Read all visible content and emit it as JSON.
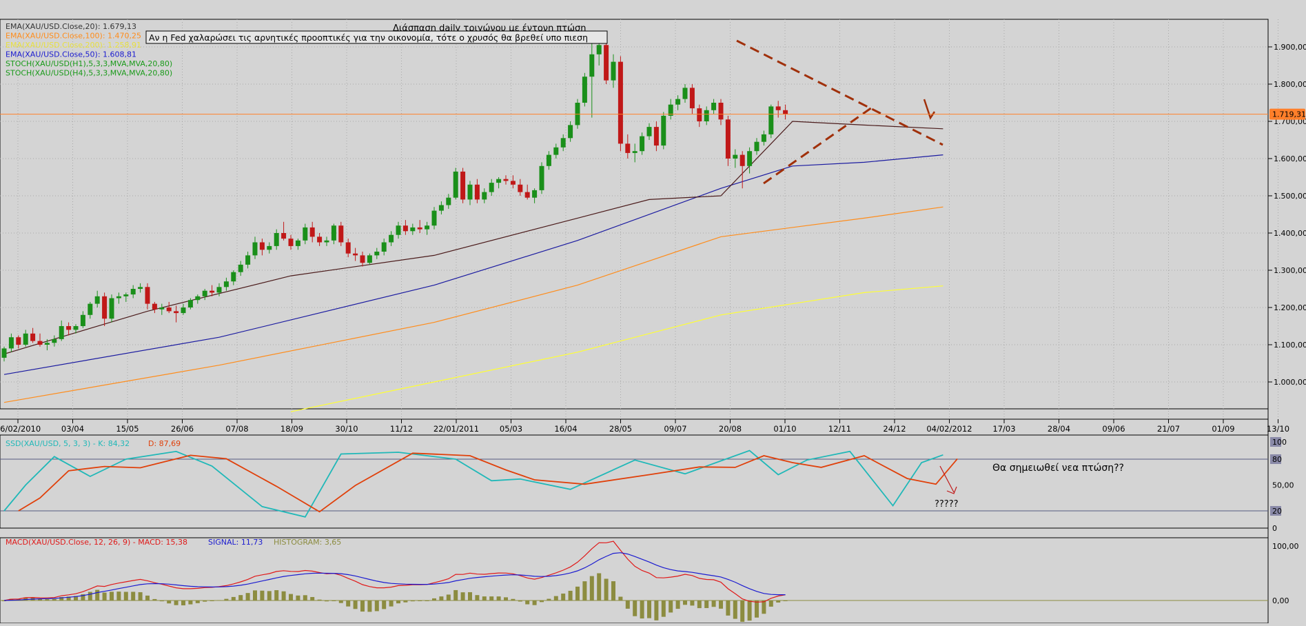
{
  "colors": {
    "background": "#d4d4d4",
    "grid": "#a8a8a8",
    "frame": "#000000",
    "bull": "#1a8f1a",
    "bear": "#c01818",
    "ema20": "#4a1a1a",
    "ema100": "#ff8c1a",
    "ema200": "#ffff33",
    "ema50": "#1a1aa0",
    "price_line": "#ff7f2a",
    "trendline": "#a0300a",
    "stoch_k": "#20b8b8",
    "stoch_d": "#e0400a",
    "macd": "#e01818",
    "signal": "#1a1ad0",
    "histogram": "#8c8c40"
  },
  "main": {
    "title": "Διάσπαση daily τριγώνου με έντονη πτώση",
    "annotation": "Αν η Fed χαλαρώσει τις αρνητικές προοπτικές για την οικονομία, τότε ο χρυσός θα βρεθεί υπο πιεση",
    "legend": [
      {
        "text": "EMA(XAU/USD.Close,20): 1.679,13",
        "color": "#333333"
      },
      {
        "text": "EMA(XAU/USD.Close,100): 1.470,25",
        "color": "#ff8c1a"
      },
      {
        "text": "EMA(XAU/USD.Close,200): 1.258,91",
        "color": "#e8e040"
      },
      {
        "text": "EMA(XAU/USD.Close,50): 1.608,81",
        "color": "#1a1ad0"
      },
      {
        "text": "STOCH(XAU/USD(H1),5,3,3,MVA,MVA,20,80)",
        "color": "#1a9a1a"
      },
      {
        "text": "STOCH(XAU/USD(H4),5,3,3,MVA,MVA,20,80)",
        "color": "#1a9a1a"
      }
    ],
    "price_label": "1.719,31",
    "price_value": 1719.31
  },
  "stoch_panel": {
    "legend_k_label": "SSD(XAU/USD, 5, 3, 3) -  K: 84,32",
    "legend_d_label": "D: 87,69",
    "note": "Θα σημειωθεί νεα πτώση??",
    "question": "?????",
    "scale_labels": [
      "100",
      "80",
      "50,00",
      "20",
      "0"
    ]
  },
  "macd_panel": {
    "legend_macd": "MACD(XAU/USD.Close, 12, 26, 9) -  MACD: 15,38",
    "legend_signal": "SIGNAL: 11,73",
    "legend_hist": "HISTOGRAM: 3,65",
    "scale_labels": [
      "100,00",
      "0,00"
    ]
  },
  "chart_data": {
    "type": "candlestick",
    "title": "Διάσπαση daily τριγώνου με έντονη πτώση",
    "instrument": "XAU/USD",
    "x_ticks": [
      "06/02/2010",
      "03/04",
      "15/05",
      "26/06",
      "07/08",
      "18/09",
      "30/10",
      "11/12",
      "22/01/2011",
      "05/03",
      "16/04",
      "28/05",
      "09/07",
      "20/08",
      "01/10",
      "12/11",
      "24/12",
      "04/02/2012",
      "17/03",
      "28/04",
      "09/06",
      "21/07",
      "01/09",
      "13/10"
    ],
    "y_ticks": [
      "1.000,00",
      "1.100,00",
      "1.200,00",
      "1.300,00",
      "1.400,00",
      "1.500,00",
      "1.600,00",
      "1.700,00",
      "1.800,00",
      "1.900,00"
    ],
    "ylim": [
      920,
      1960
    ],
    "candles": [
      [
        1065,
        1095,
        1055,
        1090
      ],
      [
        1090,
        1130,
        1080,
        1120
      ],
      [
        1120,
        1125,
        1090,
        1100
      ],
      [
        1100,
        1140,
        1095,
        1130
      ],
      [
        1130,
        1145,
        1105,
        1110
      ],
      [
        1110,
        1130,
        1095,
        1100
      ],
      [
        1100,
        1115,
        1085,
        1105
      ],
      [
        1105,
        1125,
        1095,
        1115
      ],
      [
        1115,
        1165,
        1110,
        1150
      ],
      [
        1150,
        1160,
        1125,
        1140
      ],
      [
        1140,
        1155,
        1130,
        1150
      ],
      [
        1150,
        1190,
        1145,
        1180
      ],
      [
        1180,
        1215,
        1170,
        1210
      ],
      [
        1210,
        1245,
        1200,
        1230
      ],
      [
        1230,
        1240,
        1150,
        1170
      ],
      [
        1170,
        1235,
        1160,
        1225
      ],
      [
        1225,
        1240,
        1210,
        1230
      ],
      [
        1230,
        1240,
        1215,
        1235
      ],
      [
        1235,
        1260,
        1225,
        1250
      ],
      [
        1250,
        1265,
        1240,
        1255
      ],
      [
        1255,
        1265,
        1195,
        1210
      ],
      [
        1210,
        1215,
        1185,
        1195
      ],
      [
        1195,
        1210,
        1180,
        1200
      ],
      [
        1200,
        1215,
        1185,
        1190
      ],
      [
        1190,
        1205,
        1160,
        1185
      ],
      [
        1185,
        1210,
        1180,
        1200
      ],
      [
        1200,
        1225,
        1195,
        1220
      ],
      [
        1220,
        1235,
        1210,
        1230
      ],
      [
        1230,
        1250,
        1220,
        1245
      ],
      [
        1245,
        1260,
        1230,
        1240
      ],
      [
        1240,
        1265,
        1230,
        1255
      ],
      [
        1255,
        1280,
        1245,
        1270
      ],
      [
        1270,
        1300,
        1260,
        1295
      ],
      [
        1295,
        1325,
        1285,
        1315
      ],
      [
        1315,
        1350,
        1305,
        1340
      ],
      [
        1340,
        1390,
        1330,
        1375
      ],
      [
        1375,
        1385,
        1340,
        1355
      ],
      [
        1355,
        1375,
        1345,
        1365
      ],
      [
        1365,
        1410,
        1355,
        1400
      ],
      [
        1400,
        1430,
        1380,
        1385
      ],
      [
        1385,
        1395,
        1355,
        1365
      ],
      [
        1365,
        1385,
        1355,
        1380
      ],
      [
        1380,
        1425,
        1370,
        1415
      ],
      [
        1415,
        1430,
        1375,
        1390
      ],
      [
        1390,
        1400,
        1365,
        1375
      ],
      [
        1375,
        1390,
        1365,
        1380
      ],
      [
        1380,
        1425,
        1370,
        1420
      ],
      [
        1420,
        1430,
        1365,
        1375
      ],
      [
        1375,
        1385,
        1335,
        1345
      ],
      [
        1345,
        1360,
        1325,
        1340
      ],
      [
        1340,
        1350,
        1310,
        1320
      ],
      [
        1320,
        1345,
        1315,
        1340
      ],
      [
        1340,
        1360,
        1330,
        1350
      ],
      [
        1350,
        1385,
        1340,
        1375
      ],
      [
        1375,
        1405,
        1365,
        1395
      ],
      [
        1395,
        1430,
        1385,
        1420
      ],
      [
        1420,
        1435,
        1395,
        1405
      ],
      [
        1405,
        1425,
        1395,
        1415
      ],
      [
        1415,
        1435,
        1400,
        1410
      ],
      [
        1410,
        1430,
        1395,
        1420
      ],
      [
        1420,
        1470,
        1410,
        1460
      ],
      [
        1460,
        1485,
        1450,
        1475
      ],
      [
        1475,
        1505,
        1465,
        1495
      ],
      [
        1495,
        1575,
        1490,
        1565
      ],
      [
        1565,
        1575,
        1480,
        1490
      ],
      [
        1490,
        1540,
        1475,
        1530
      ],
      [
        1530,
        1545,
        1480,
        1490
      ],
      [
        1490,
        1520,
        1480,
        1510
      ],
      [
        1510,
        1545,
        1500,
        1535
      ],
      [
        1535,
        1550,
        1520,
        1545
      ],
      [
        1545,
        1555,
        1530,
        1540
      ],
      [
        1540,
        1555,
        1520,
        1530
      ],
      [
        1530,
        1545,
        1500,
        1510
      ],
      [
        1510,
        1530,
        1490,
        1495
      ],
      [
        1495,
        1520,
        1480,
        1515
      ],
      [
        1515,
        1590,
        1505,
        1580
      ],
      [
        1580,
        1620,
        1570,
        1610
      ],
      [
        1610,
        1640,
        1600,
        1630
      ],
      [
        1630,
        1665,
        1620,
        1655
      ],
      [
        1655,
        1700,
        1645,
        1690
      ],
      [
        1690,
        1760,
        1680,
        1750
      ],
      [
        1750,
        1830,
        1740,
        1820
      ],
      [
        1820,
        1915,
        1710,
        1880
      ],
      [
        1880,
        1920,
        1850,
        1905
      ],
      [
        1905,
        1910,
        1800,
        1810
      ],
      [
        1810,
        1880,
        1790,
        1860
      ],
      [
        1860,
        1875,
        1620,
        1640
      ],
      [
        1640,
        1665,
        1600,
        1615
      ],
      [
        1615,
        1640,
        1590,
        1620
      ],
      [
        1620,
        1670,
        1610,
        1660
      ],
      [
        1660,
        1695,
        1650,
        1685
      ],
      [
        1685,
        1700,
        1620,
        1635
      ],
      [
        1635,
        1725,
        1625,
        1715
      ],
      [
        1715,
        1760,
        1705,
        1745
      ],
      [
        1745,
        1770,
        1730,
        1760
      ],
      [
        1760,
        1800,
        1750,
        1790
      ],
      [
        1790,
        1800,
        1720,
        1735
      ],
      [
        1735,
        1745,
        1685,
        1700
      ],
      [
        1700,
        1740,
        1690,
        1730
      ],
      [
        1730,
        1760,
        1720,
        1750
      ],
      [
        1750,
        1760,
        1690,
        1705
      ],
      [
        1705,
        1715,
        1580,
        1600
      ],
      [
        1600,
        1625,
        1575,
        1610
      ],
      [
        1610,
        1620,
        1520,
        1580
      ],
      [
        1580,
        1630,
        1560,
        1620
      ],
      [
        1620,
        1655,
        1610,
        1645
      ],
      [
        1645,
        1675,
        1635,
        1665
      ],
      [
        1665,
        1745,
        1655,
        1740
      ],
      [
        1740,
        1755,
        1710,
        1730
      ],
      [
        1730,
        1745,
        1705,
        1719
      ]
    ],
    "ema_20": [
      [
        0,
        1075
      ],
      [
        20,
        1190
      ],
      [
        40,
        1285
      ],
      [
        60,
        1340
      ],
      [
        80,
        1440
      ],
      [
        90,
        1490
      ],
      [
        100,
        1500
      ],
      [
        110,
        1700
      ],
      [
        120,
        1690
      ],
      [
        131,
        1680
      ]
    ],
    "ema_50": [
      [
        0,
        1020
      ],
      [
        30,
        1120
      ],
      [
        60,
        1260
      ],
      [
        80,
        1380
      ],
      [
        100,
        1520
      ],
      [
        110,
        1580
      ],
      [
        120,
        1590
      ],
      [
        131,
        1610
      ]
    ],
    "ema_100": [
      [
        0,
        945
      ],
      [
        30,
        1045
      ],
      [
        60,
        1160
      ],
      [
        80,
        1260
      ],
      [
        100,
        1390
      ],
      [
        120,
        1440
      ],
      [
        131,
        1470
      ]
    ],
    "ema_200": [
      [
        40,
        920
      ],
      [
        60,
        1000
      ],
      [
        80,
        1080
      ],
      [
        100,
        1180
      ],
      [
        120,
        1240
      ],
      [
        131,
        1258
      ]
    ],
    "stoch_k": [
      [
        0,
        20
      ],
      [
        3,
        50
      ],
      [
        7,
        83
      ],
      [
        12,
        60
      ],
      [
        17,
        80
      ],
      [
        24,
        89
      ],
      [
        29,
        72
      ],
      [
        36,
        25
      ],
      [
        42,
        13
      ],
      [
        47,
        86
      ],
      [
        55,
        88
      ],
      [
        63,
        80
      ],
      [
        68,
        55
      ],
      [
        72,
        57
      ],
      [
        79,
        45
      ],
      [
        88,
        79
      ],
      [
        95,
        63
      ],
      [
        100,
        78
      ],
      [
        104,
        90
      ],
      [
        108,
        62
      ],
      [
        112,
        79
      ],
      [
        118,
        89
      ],
      [
        124,
        26
      ],
      [
        128,
        76
      ],
      [
        131,
        85
      ]
    ]
  }
}
